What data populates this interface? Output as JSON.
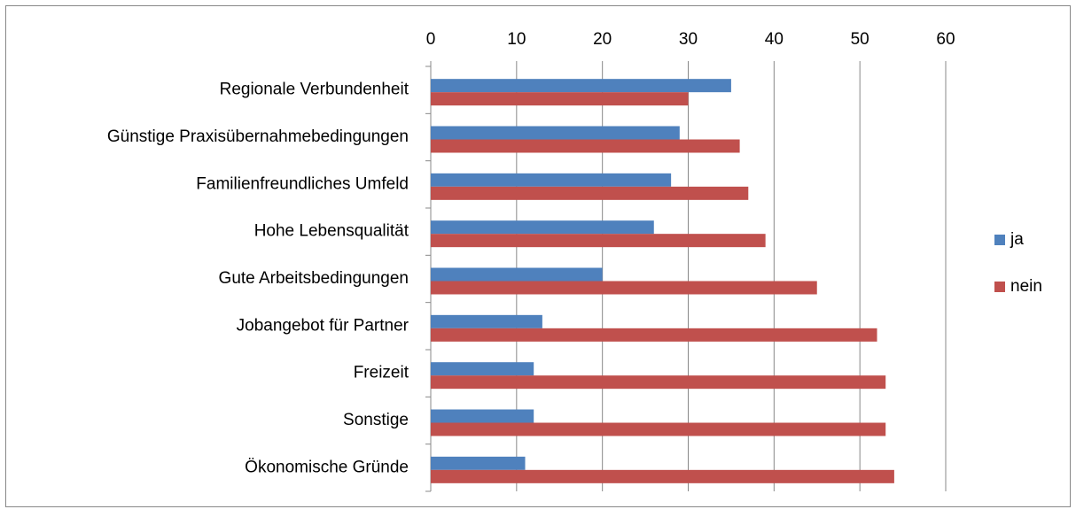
{
  "chart_data": {
    "type": "barh",
    "categories": [
      "Regionale Verbundenheit",
      "Günstige Praxisübernahmebedingungen",
      "Familienfreundliches Umfeld",
      "Hohe Lebensqualität",
      "Gute Arbeitsbedingungen",
      "Jobangebot für Partner",
      "Freizeit",
      "Sonstige",
      "Ökonomische Gründe"
    ],
    "series": [
      {
        "name": "ja",
        "color": "#4f81bd",
        "values": [
          35,
          29,
          28,
          26,
          20,
          13,
          12,
          12,
          11
        ]
      },
      {
        "name": "nein",
        "color": "#c0504d",
        "values": [
          30,
          36,
          37,
          39,
          45,
          52,
          53,
          53,
          54
        ]
      }
    ],
    "xlim": [
      0,
      60
    ],
    "xticks": [
      0,
      10,
      20,
      30,
      40,
      50,
      60
    ],
    "grid": true,
    "legend": "right"
  }
}
